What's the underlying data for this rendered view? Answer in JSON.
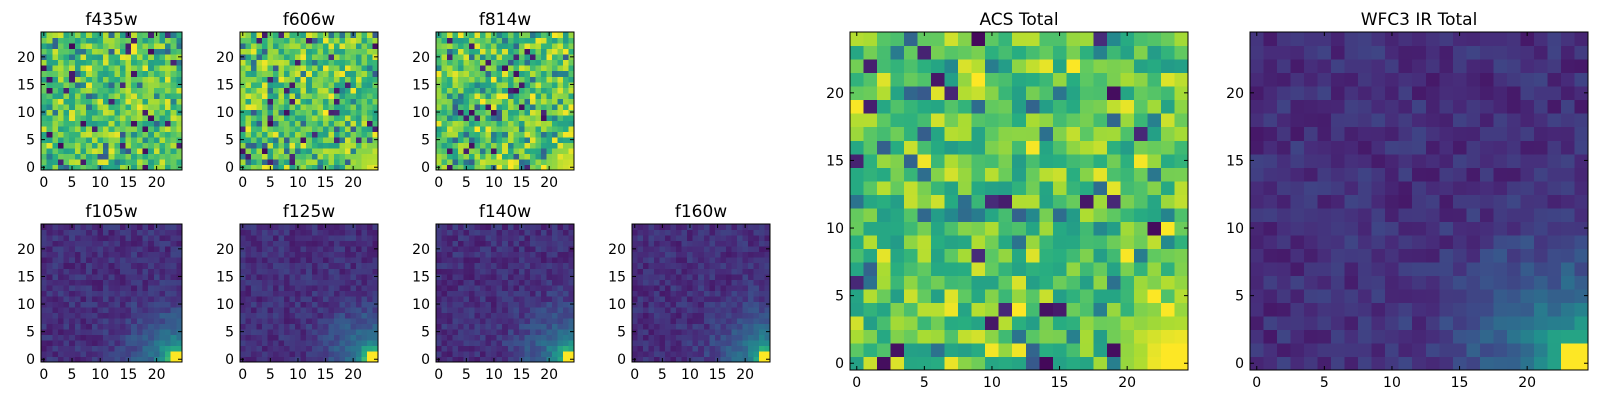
{
  "chart_data": [
    {
      "type": "heatmap",
      "title": "f435w",
      "colormap": "viridis",
      "grid_size": [
        25,
        25
      ],
      "xlim": [
        -0.5,
        24.5
      ],
      "ylim": [
        -0.5,
        24.5
      ],
      "xticks": [
        0,
        5,
        10,
        15,
        20
      ],
      "yticks": [
        0,
        5,
        10,
        15,
        20
      ],
      "pattern": "noise",
      "seed": 11,
      "hot_corner": 0.0
    },
    {
      "type": "heatmap",
      "title": "f606w",
      "colormap": "viridis",
      "grid_size": [
        25,
        25
      ],
      "xlim": [
        -0.5,
        24.5
      ],
      "ylim": [
        -0.5,
        24.5
      ],
      "xticks": [
        0,
        5,
        10,
        15,
        20
      ],
      "yticks": [
        0,
        5,
        10,
        15,
        20
      ],
      "pattern": "noise",
      "seed": 23,
      "hot_corner": 0.2
    },
    {
      "type": "heatmap",
      "title": "f814w",
      "colormap": "viridis",
      "grid_size": [
        25,
        25
      ],
      "xlim": [
        -0.5,
        24.5
      ],
      "ylim": [
        -0.5,
        24.5
      ],
      "xticks": [
        0,
        5,
        10,
        15,
        20
      ],
      "yticks": [
        0,
        5,
        10,
        15,
        20
      ],
      "pattern": "noise",
      "seed": 37,
      "hot_corner": 0.35
    },
    {
      "type": "heatmap",
      "title": "f105w",
      "colormap": "viridis",
      "grid_size": [
        25,
        25
      ],
      "xlim": [
        -0.5,
        24.5
      ],
      "ylim": [
        -0.5,
        24.5
      ],
      "xticks": [
        0,
        5,
        10,
        15,
        20
      ],
      "yticks": [
        0,
        5,
        10,
        15,
        20
      ],
      "pattern": "smooth",
      "seed": 41,
      "hot_corner": 1.0
    },
    {
      "type": "heatmap",
      "title": "f125w",
      "colormap": "viridis",
      "grid_size": [
        25,
        25
      ],
      "xlim": [
        -0.5,
        24.5
      ],
      "ylim": [
        -0.5,
        24.5
      ],
      "xticks": [
        0,
        5,
        10,
        15,
        20
      ],
      "yticks": [
        0,
        5,
        10,
        15,
        20
      ],
      "pattern": "smooth",
      "seed": 53,
      "hot_corner": 1.0
    },
    {
      "type": "heatmap",
      "title": "f140w",
      "colormap": "viridis",
      "grid_size": [
        25,
        25
      ],
      "xlim": [
        -0.5,
        24.5
      ],
      "ylim": [
        -0.5,
        24.5
      ],
      "xticks": [
        0,
        5,
        10,
        15,
        20
      ],
      "yticks": [
        0,
        5,
        10,
        15,
        20
      ],
      "pattern": "smooth",
      "seed": 67,
      "hot_corner": 1.0
    },
    {
      "type": "heatmap",
      "title": "f160w",
      "colormap": "viridis",
      "grid_size": [
        25,
        25
      ],
      "xlim": [
        -0.5,
        24.5
      ],
      "ylim": [
        -0.5,
        24.5
      ],
      "xticks": [
        0,
        5,
        10,
        15,
        20
      ],
      "yticks": [
        0,
        5,
        10,
        15,
        20
      ],
      "pattern": "smooth",
      "seed": 79,
      "hot_corner": 1.0
    },
    {
      "type": "heatmap",
      "title": "ACS Total",
      "colormap": "viridis",
      "grid_size": [
        25,
        25
      ],
      "xlim": [
        -0.5,
        24.5
      ],
      "ylim": [
        -0.5,
        24.5
      ],
      "xticks": [
        0,
        5,
        10,
        15,
        20
      ],
      "yticks": [
        0,
        5,
        10,
        15,
        20
      ],
      "pattern": "noise",
      "seed": 97,
      "hot_corner": 0.7
    },
    {
      "type": "heatmap",
      "title": "WFC3 IR Total",
      "colormap": "viridis",
      "grid_size": [
        25,
        25
      ],
      "xlim": [
        -0.5,
        24.5
      ],
      "ylim": [
        -0.5,
        24.5
      ],
      "xticks": [
        0,
        5,
        10,
        15,
        20
      ],
      "yticks": [
        0,
        5,
        10,
        15,
        20
      ],
      "pattern": "smooth",
      "seed": 101,
      "hot_corner": 1.0
    }
  ]
}
